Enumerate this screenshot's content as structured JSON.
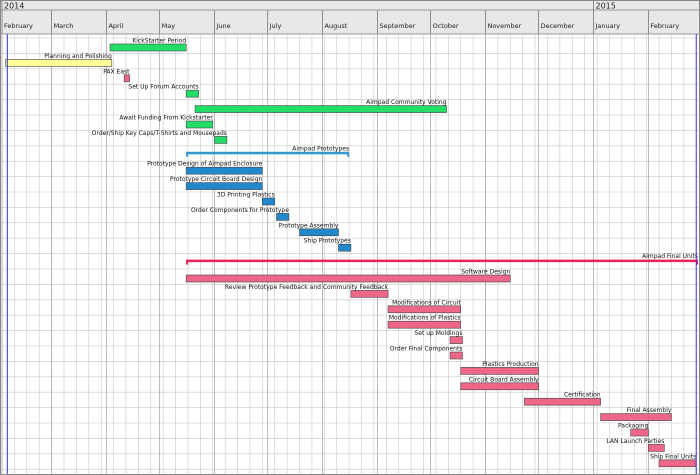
{
  "chart_data": {
    "type": "gantt",
    "years": [
      {
        "label": "2014",
        "start": "2014-02-01"
      },
      {
        "label": "2015",
        "start": "2015-01-01"
      }
    ],
    "months": [
      {
        "label": "February",
        "start": "2014-02-01"
      },
      {
        "label": "March",
        "start": "2014-03-01"
      },
      {
        "label": "April",
        "start": "2014-04-01"
      },
      {
        "label": "May",
        "start": "2014-05-01"
      },
      {
        "label": "June",
        "start": "2014-06-01"
      },
      {
        "label": "July",
        "start": "2014-07-01"
      },
      {
        "label": "August",
        "start": "2014-08-01"
      },
      {
        "label": "September",
        "start": "2014-09-01"
      },
      {
        "label": "October",
        "start": "2014-10-01"
      },
      {
        "label": "November",
        "start": "2014-11-01"
      },
      {
        "label": "December",
        "start": "2014-12-01"
      },
      {
        "label": "January",
        "start": "2015-01-01"
      },
      {
        "label": "February",
        "start": "2015-02-01"
      }
    ],
    "x_range": [
      "2014-02-01",
      "2015-03-01"
    ],
    "today_markers": [
      "2014-02-04",
      "2015-02-28"
    ],
    "colors": {
      "green": "#22dd66",
      "yellow": "#ffff99",
      "pink": "#ee6688",
      "blue": "#2288cc",
      "summary_blue": "#3399cc",
      "summary_red": "#ee2255",
      "marker": "#3333cc",
      "header_bg": "#e8e8e8",
      "grid": "#c8c8c8"
    },
    "tasks": [
      {
        "name": "KickStarter Period",
        "start": "2014-04-03",
        "end": "2014-05-16",
        "color": "green"
      },
      {
        "name": "Planning and Polishing",
        "start": "2014-02-03",
        "end": "2014-04-04",
        "color": "yellow"
      },
      {
        "name": "PAX East",
        "start": "2014-04-11",
        "end": "2014-04-14",
        "color": "pink"
      },
      {
        "name": "Set Up Forum Accounts",
        "start": "2014-05-16",
        "end": "2014-05-23",
        "color": "green"
      },
      {
        "name": "Aimpad Community Voting",
        "start": "2014-05-21",
        "end": "2014-10-10",
        "color": "green"
      },
      {
        "name": "Await Funding From Kickstarter",
        "start": "2014-05-16",
        "end": "2014-05-31",
        "color": "green"
      },
      {
        "name": "Order/Ship Key Caps/T-Shirts and Mousepads",
        "start": "2014-06-01",
        "end": "2014-06-08",
        "color": "green"
      },
      {
        "name": "Aimpad Prototypes",
        "start": "2014-05-16",
        "end": "2014-08-16",
        "color": "summary_blue",
        "summary": true
      },
      {
        "name": "Prototype Design of Aimpad Enclosure",
        "start": "2014-05-16",
        "end": "2014-06-28",
        "color": "blue"
      },
      {
        "name": "Prototype Circuit Board Design",
        "start": "2014-05-16",
        "end": "2014-06-28",
        "color": "blue"
      },
      {
        "name": "3D Printing Plastics",
        "start": "2014-06-28",
        "end": "2014-07-05",
        "color": "blue"
      },
      {
        "name": "Order Components for Prototype",
        "start": "2014-07-06",
        "end": "2014-07-13",
        "color": "blue"
      },
      {
        "name": "Prototype Assembly",
        "start": "2014-07-19",
        "end": "2014-08-10",
        "color": "blue"
      },
      {
        "name": "Ship Prototypes",
        "start": "2014-08-10",
        "end": "2014-08-17",
        "color": "blue"
      },
      {
        "name": "Aimpad Final Units",
        "start": "2014-05-16",
        "end": "2015-03-01",
        "color": "summary_red",
        "summary": true
      },
      {
        "name": "Software Design",
        "start": "2014-05-16",
        "end": "2014-11-15",
        "color": "pink"
      },
      {
        "name": "Review Prototype Feedback and Community Feedback",
        "start": "2014-08-17",
        "end": "2014-09-07",
        "color": "pink"
      },
      {
        "name": "Modifications of Circuit",
        "start": "2014-09-07",
        "end": "2014-10-18",
        "color": "pink"
      },
      {
        "name": "Modifications of Plastics",
        "start": "2014-09-07",
        "end": "2014-10-18",
        "color": "pink"
      },
      {
        "name": "Set up Moldings",
        "start": "2014-10-12",
        "end": "2014-10-19",
        "color": "pink"
      },
      {
        "name": "Order Final Components",
        "start": "2014-10-12",
        "end": "2014-10-19",
        "color": "pink"
      },
      {
        "name": "Plastics Production",
        "start": "2014-10-18",
        "end": "2014-12-01",
        "color": "pink"
      },
      {
        "name": "Circuit Board Assembly",
        "start": "2014-10-18",
        "end": "2014-12-01",
        "color": "pink"
      },
      {
        "name": "Certification",
        "start": "2014-11-23",
        "end": "2015-01-05",
        "color": "pink"
      },
      {
        "name": "Final Assembly",
        "start": "2015-01-05",
        "end": "2015-02-14",
        "color": "pink"
      },
      {
        "name": "Packaging",
        "start": "2015-01-22",
        "end": "2015-02-01",
        "color": "pink"
      },
      {
        "name": "LAN Launch Parties",
        "start": "2015-02-01",
        "end": "2015-02-10",
        "color": "pink"
      },
      {
        "name": "Ship Final Units",
        "start": "2015-02-07",
        "end": "2015-02-28",
        "color": "pink"
      }
    ]
  }
}
